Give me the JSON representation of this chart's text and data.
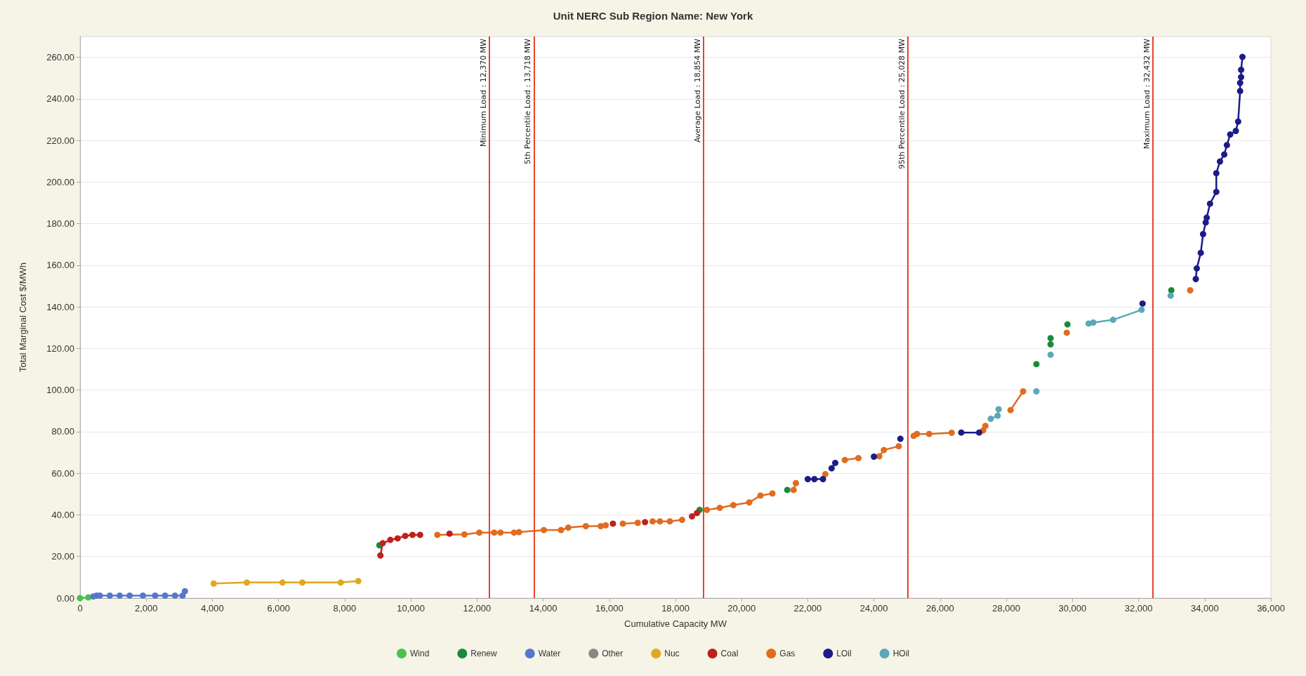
{
  "chart_data": {
    "type": "line",
    "title": "Unit NERC Sub Region Name: New York",
    "xlabel": "Cumulative Capacity MW",
    "ylabel": "Total Marginal Cost $/MWh",
    "xlim": [
      0,
      36000
    ],
    "xticks": [
      0,
      {
        "value": 2000,
        "label": "2,000"
      },
      {
        "value": 4000,
        "label": "4,000"
      },
      {
        "value": 6000,
        "label": "6,000"
      },
      {
        "value": 8000,
        "label": "8,000"
      },
      {
        "value": 10000,
        "label": "10,000"
      },
      {
        "value": 12000,
        "label": "12,000"
      },
      {
        "value": 14000,
        "label": "14,000"
      },
      {
        "value": 16000,
        "label": "16,000"
      },
      {
        "value": 18000,
        "label": "18,000"
      },
      {
        "value": 20000,
        "label": "20,000"
      },
      {
        "value": 22000,
        "label": "22,000"
      },
      {
        "value": 24000,
        "label": "24,000"
      },
      {
        "value": 26000,
        "label": "26,000"
      },
      {
        "value": 28000,
        "label": "28,000"
      },
      {
        "value": 30000,
        "label": "30,000"
      },
      {
        "value": 32000,
        "label": "32,000"
      },
      {
        "value": 34000,
        "label": "34,000"
      },
      {
        "value": 36000,
        "label": "36,000"
      }
    ],
    "ylim": [
      0,
      270
    ],
    "yticks": [
      {
        "value": 0,
        "label": "0.00"
      },
      {
        "value": 20,
        "label": "20.00"
      },
      {
        "value": 40,
        "label": "40.00"
      },
      {
        "value": 60,
        "label": "60.00"
      },
      {
        "value": 80,
        "label": "80.00"
      },
      {
        "value": 100,
        "label": "100.00"
      },
      {
        "value": 120,
        "label": "120.00"
      },
      {
        "value": 140,
        "label": "140.00"
      },
      {
        "value": 160,
        "label": "160.00"
      },
      {
        "value": 180,
        "label": "180.00"
      },
      {
        "value": 200,
        "label": "200.00"
      },
      {
        "value": 220,
        "label": "220.00"
      },
      {
        "value": 240,
        "label": "240.00"
      },
      {
        "value": 260,
        "label": "260.00"
      }
    ],
    "grid": "y",
    "legend": "bottom",
    "marker": "circle",
    "line_style": "solid",
    "ref_lines": [
      {
        "axis": "x",
        "value": 12370,
        "label": "Minimum Load : 12,370 MW",
        "color": "#e8432a"
      },
      {
        "axis": "x",
        "value": 13718,
        "label": "5th Percentile Load : 13,718 MW",
        "color": "#e8432a"
      },
      {
        "axis": "x",
        "value": 18854,
        "label": "Average Load : 18,854 MW",
        "color": "#e8432a"
      },
      {
        "axis": "x",
        "value": 25028,
        "label": "95th Percentile Load : 25,028 MW",
        "color": "#e8432a"
      },
      {
        "axis": "x",
        "value": 32432,
        "label": "Maximum Load : 32,432 MW",
        "color": "#e8432a"
      }
    ],
    "series": [
      {
        "name": "Wind",
        "color": "#4cc04c",
        "x": [
          0,
          250
        ],
        "values": [
          0,
          0.3
        ]
      },
      {
        "name": "Renew",
        "color": "#1a8a3a",
        "x": [
          9050,
          null,
          18730,
          null,
          21380,
          null,
          28910,
          null,
          29340,
          29340,
          null,
          29850,
          null,
          32990
        ],
        "values": [
          25.4,
          null,
          42.4,
          null,
          52,
          null,
          112.5,
          null,
          122,
          125,
          null,
          131.6,
          null,
          148
        ]
      },
      {
        "name": "Water",
        "color": "#5577cc",
        "x": [
          400,
          500,
          600,
          900,
          1200,
          1500,
          1900,
          2270,
          2570,
          2870,
          3100,
          3170
        ],
        "values": [
          0.8,
          1.2,
          1.2,
          1.2,
          1.2,
          1.2,
          1.2,
          1.2,
          1.2,
          1.2,
          1.2,
          3.3
        ]
      },
      {
        "name": "Other",
        "color": "#888888"
      },
      {
        "name": "Nuc",
        "color": "#e0a820",
        "x": [
          4040,
          5040,
          6120,
          6720,
          7880,
          8410
        ],
        "values": [
          7,
          7.5,
          7.5,
          7.5,
          7.5,
          8.2
        ]
      },
      {
        "name": "Coal",
        "color": "#c0201c",
        "x": [
          9080,
          9150,
          9380,
          9600,
          9830,
          10050,
          10280,
          null,
          11170,
          null,
          16110,
          null,
          17080,
          null,
          18500,
          18650
        ],
        "values": [
          20.5,
          26.4,
          28,
          28.7,
          29.9,
          30.4,
          30.4,
          null,
          31,
          null,
          35.8,
          null,
          36.5,
          null,
          39.3,
          40.9
        ]
      },
      {
        "name": "Gas",
        "color": "#e06c20",
        "x": [
          10800,
          11620,
          12070,
          12520,
          12710,
          13120,
          13270,
          14020,
          14540,
          14760,
          15290,
          15740,
          15890,
          null,
          16410,
          16860,
          null,
          17310,
          17530,
          17830,
          18200,
          null,
          18950,
          19340,
          19750,
          20230,
          20570,
          20930,
          null,
          21570,
          21640,
          null,
          22530,
          null,
          23120,
          23530,
          null,
          24160,
          24300,
          24750,
          null,
          25200,
          25300,
          25670,
          26350,
          null,
          27300,
          27370,
          null,
          28130,
          28510,
          null,
          29830,
          null,
          33560
        ],
        "values": [
          30.4,
          30.6,
          31.5,
          31.5,
          31.5,
          31.5,
          31.7,
          32.7,
          32.7,
          33.9,
          34.6,
          34.6,
          35,
          null,
          35.8,
          36.2,
          null,
          36.9,
          36.9,
          36.9,
          37.6,
          null,
          42.4,
          43.4,
          44.7,
          46,
          49.3,
          50.3,
          null,
          52,
          55.3,
          null,
          59.6,
          null,
          66.4,
          67.3,
          null,
          68.2,
          71.2,
          73,
          null,
          78,
          78.9,
          78.9,
          79.5,
          null,
          80.6,
          82.8,
          null,
          90.4,
          99.4,
          null,
          127.6,
          null,
          148
        ]
      },
      {
        "name": "LOil",
        "color": "#1c1c88",
        "x": [
          22000,
          22200,
          22460,
          null,
          22720,
          22830,
          null,
          24000,
          null,
          24800,
          null,
          26640,
          27180,
          null,
          32120,
          null,
          33730,
          33760,
          33880,
          33950,
          34030,
          34060,
          34160,
          34350,
          34350,
          34460,
          34590,
          34670,
          34770,
          34940,
          35010,
          35070,
          35070,
          35100,
          35100,
          35140
        ],
        "values": [
          57.2,
          57.2,
          57.2,
          null,
          62.4,
          65,
          null,
          68,
          null,
          76.6,
          null,
          79.6,
          79.6,
          null,
          141.6,
          null,
          153.4,
          158.5,
          166,
          175,
          180.6,
          182.9,
          189.6,
          195.3,
          204.3,
          209.9,
          213.3,
          217.8,
          222.9,
          224.6,
          229.1,
          243.8,
          247.7,
          250.5,
          254,
          260.2
        ]
      },
      {
        "name": "HOil",
        "color": "#5aa8b8",
        "x": [
          27530,
          27740,
          27770,
          null,
          28910,
          null,
          29340,
          null,
          30490,
          30630,
          31230,
          32090,
          null,
          32970
        ],
        "values": [
          86.2,
          87.7,
          90.8,
          null,
          99.4,
          null,
          117,
          null,
          132,
          132.5,
          133.8,
          138.6,
          null,
          145.4
        ]
      }
    ]
  }
}
